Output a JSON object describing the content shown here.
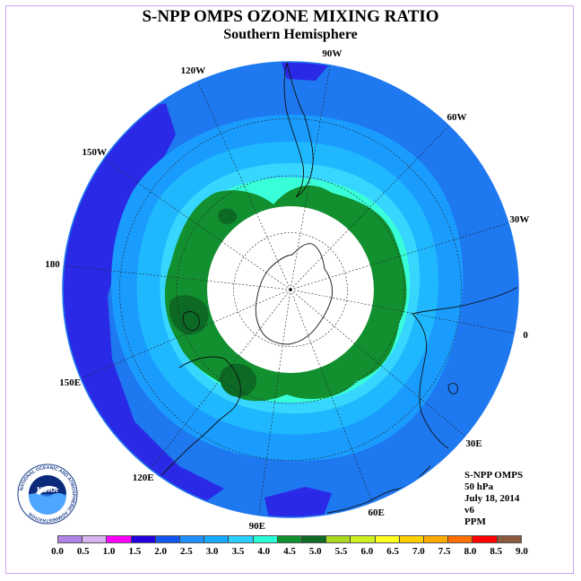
{
  "title": "S-NPP OMPS OZONE MIXING RATIO",
  "subtitle": "Southern Hemisphere",
  "longitude_labels": [
    {
      "text": "90W",
      "angle": -80
    },
    {
      "text": "60W",
      "angle": -46
    },
    {
      "text": "30W",
      "angle": -17
    },
    {
      "text": "0",
      "angle": 11
    },
    {
      "text": "30E",
      "angle": 40
    },
    {
      "text": "60E",
      "angle": 69
    },
    {
      "text": "90E",
      "angle": 98
    },
    {
      "text": "120E",
      "angle": 128
    },
    {
      "text": "150E",
      "angle": 157
    },
    {
      "text": "180",
      "angle": 186
    },
    {
      "text": "150W",
      "angle": 215
    },
    {
      "text": "120W",
      "angle": 246
    }
  ],
  "info": {
    "instrument": "S-NPP OMPS",
    "level": "50 hPa",
    "date": "July 18, 2014",
    "version": "v6",
    "units": "PPM"
  },
  "logo": {
    "text": "NOAA",
    "ring_text": "NATIONAL OCEANIC AND ATMOSPHERIC ADMINISTRATION"
  },
  "colorbar": {
    "colors": [
      "#b083e8",
      "#d8b4f0",
      "#ff00ff",
      "#2200dd",
      "#1255f0",
      "#1e90ff",
      "#14aaff",
      "#2ad0ff",
      "#28ffd8",
      "#11902e",
      "#0f6a24",
      "#a8d820",
      "#ccf020",
      "#ffff20",
      "#ffd000",
      "#ffaa00",
      "#ff7000",
      "#ff0000",
      "#8b5a3c"
    ],
    "labels": [
      "0.0",
      "0.5",
      "1.0",
      "1.5",
      "2.0",
      "2.5",
      "3.0",
      "3.5",
      "4.0",
      "4.5",
      "5.0",
      "5.5",
      "6.0",
      "6.5",
      "7.0",
      "7.5",
      "8.0",
      "8.5",
      "9.0"
    ]
  },
  "field_colors": {
    "outer_blue": "#1e78f0",
    "deep_blue": "#2a2ae6",
    "mid_blue": "#1a9cff",
    "light_blue": "#1fb8ff",
    "cyan_blue": "#36d6ff",
    "aqua": "#38ffd8",
    "green": "#129030",
    "dark_green": "#0c6a24",
    "no_data": "#ffffff",
    "land_outline": "#111111"
  }
}
